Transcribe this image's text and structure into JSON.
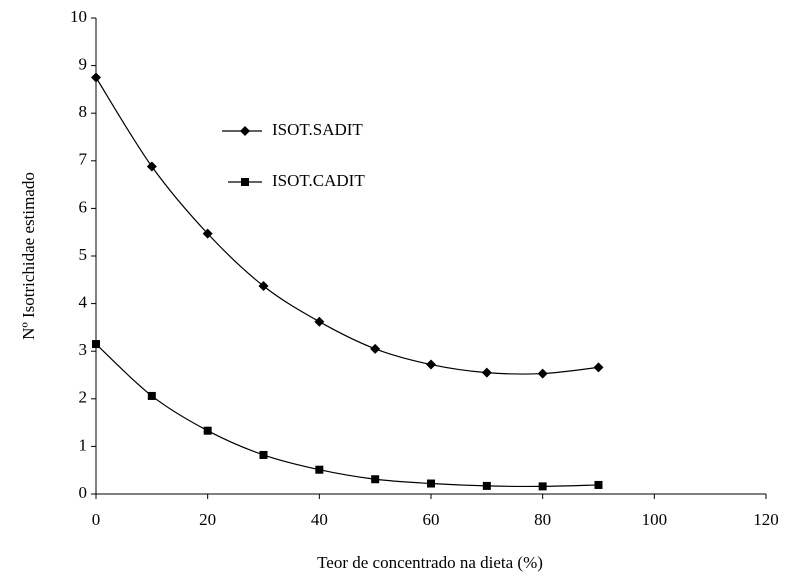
{
  "chart_data": {
    "type": "line",
    "xlabel": "Teor de concentrado na dieta (%)",
    "ylabel": "Nº Isotrichidae estimado",
    "x": [
      0,
      10,
      20,
      30,
      40,
      50,
      60,
      70,
      80,
      90
    ],
    "series": [
      {
        "name": "ISOT.SADIT",
        "color": "#000000",
        "marker": "diamond",
        "values": [
          8.75,
          6.88,
          5.47,
          4.37,
          3.62,
          3.05,
          2.72,
          2.55,
          2.53,
          2.66
        ]
      },
      {
        "name": "ISOT.CADIT",
        "color": "#000000",
        "marker": "square",
        "values": [
          3.15,
          2.06,
          1.33,
          0.82,
          0.51,
          0.31,
          0.22,
          0.17,
          0.16,
          0.19
        ]
      }
    ],
    "xlim": [
      0,
      120
    ],
    "xticks": [
      0,
      20,
      40,
      60,
      80,
      100,
      120
    ],
    "ylim": [
      0,
      10
    ],
    "yticks": [
      0,
      1,
      2,
      3,
      4,
      5,
      6,
      7,
      8,
      9,
      10
    ],
    "smooth": true
  }
}
